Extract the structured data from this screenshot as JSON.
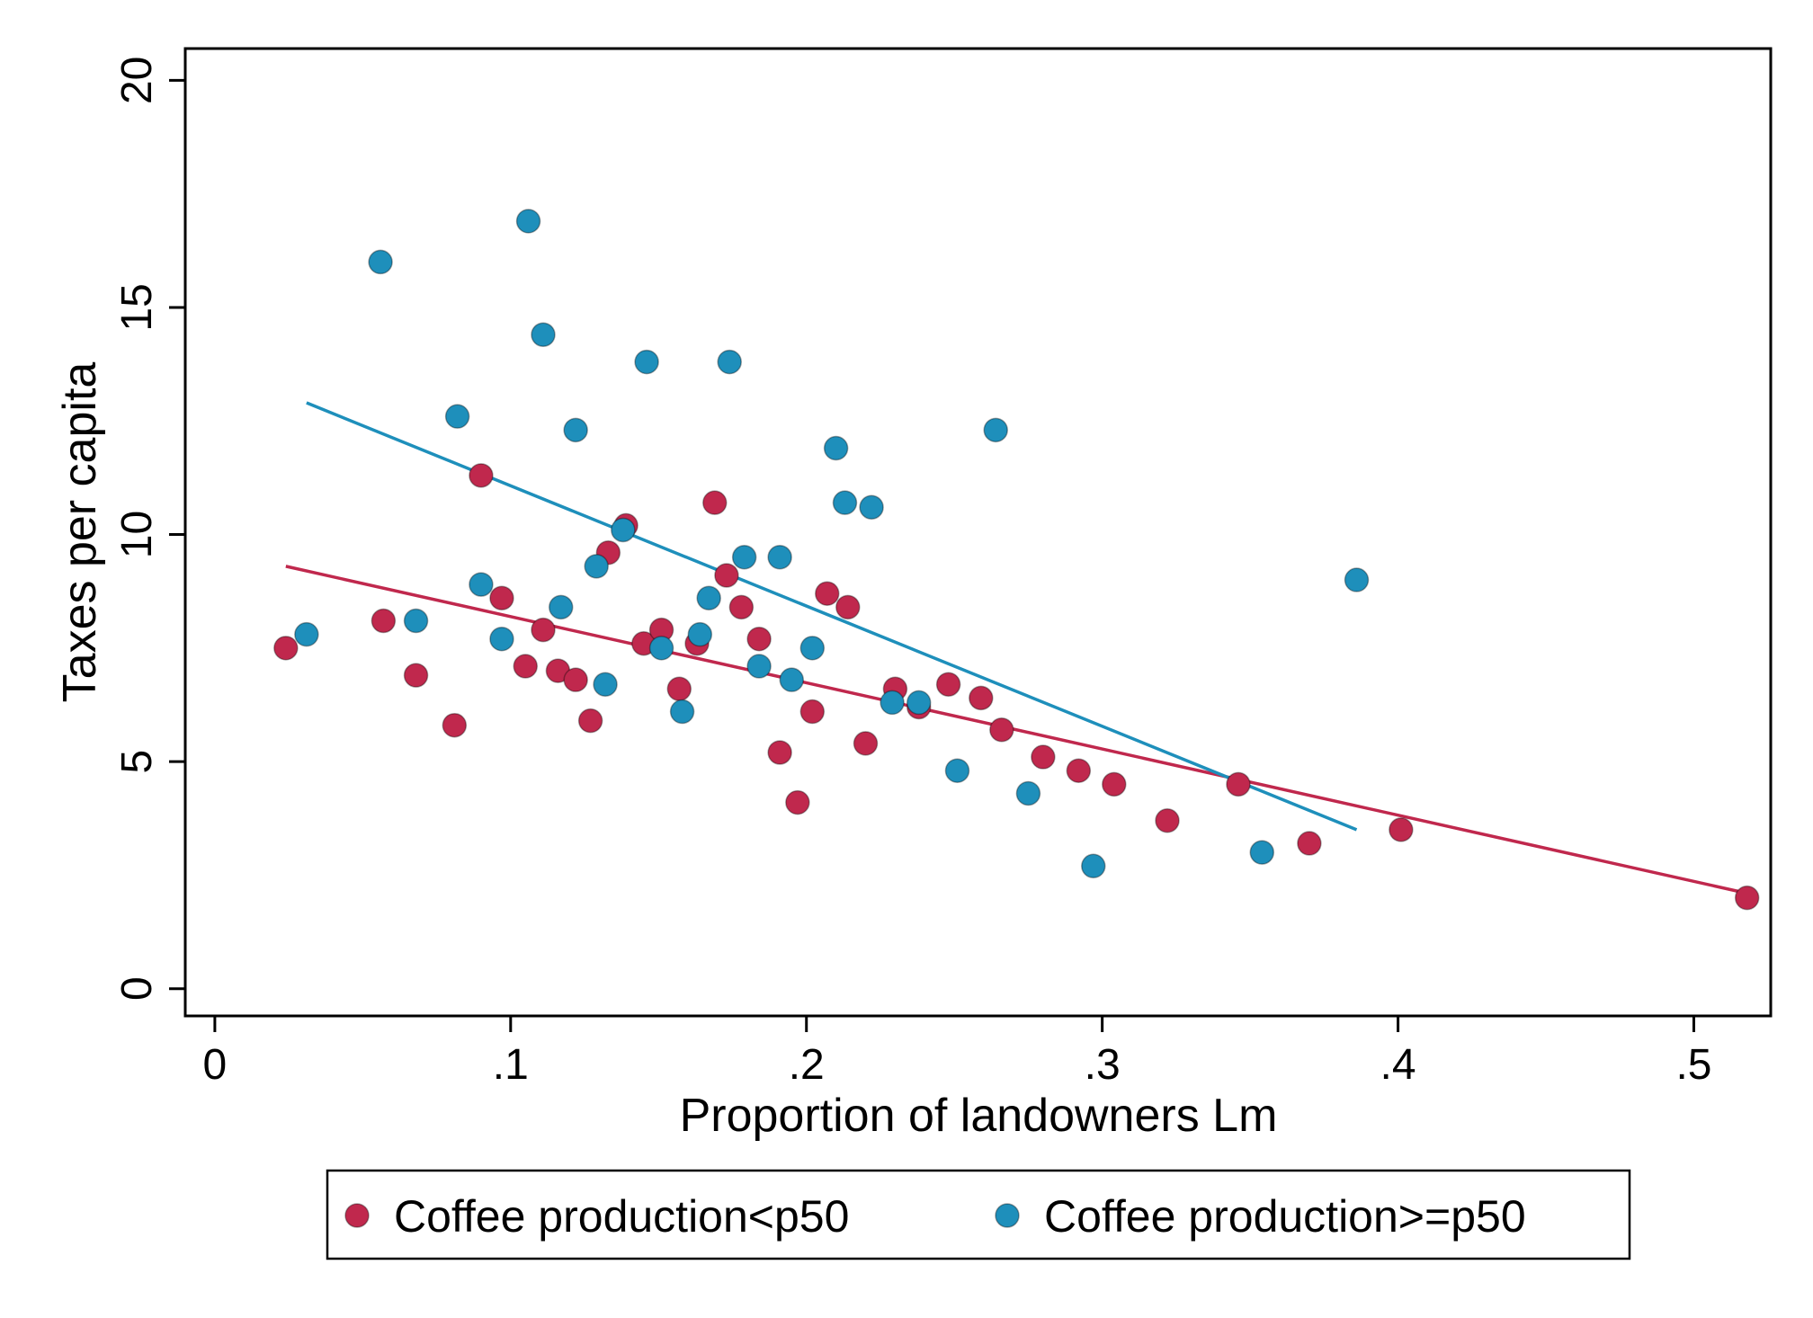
{
  "chart_data": {
    "type": "scatter",
    "title": "",
    "xlabel": "Proportion of landowners Lm",
    "ylabel": "Taxes per capita",
    "xlim": [
      -0.01,
      0.526
    ],
    "ylim": [
      -0.6,
      20.7
    ],
    "xticks": [
      {
        "value": 0,
        "label": "0"
      },
      {
        "value": 0.1,
        "label": ".1"
      },
      {
        "value": 0.2,
        "label": ".2"
      },
      {
        "value": 0.3,
        "label": ".3"
      },
      {
        "value": 0.4,
        "label": ".4"
      },
      {
        "value": 0.5,
        "label": ".5"
      }
    ],
    "yticks": [
      {
        "value": 0,
        "label": "0"
      },
      {
        "value": 5,
        "label": "5"
      },
      {
        "value": 10,
        "label": "10"
      },
      {
        "value": 15,
        "label": "15"
      },
      {
        "value": 20,
        "label": "20"
      }
    ],
    "grid": false,
    "legend_position": "bottom",
    "series": [
      {
        "name": "Coffee production<p50",
        "color": "#c0284d",
        "points": [
          [
            0.024,
            7.5
          ],
          [
            0.057,
            8.1
          ],
          [
            0.068,
            6.9
          ],
          [
            0.081,
            5.8
          ],
          [
            0.09,
            11.3
          ],
          [
            0.097,
            8.6
          ],
          [
            0.105,
            7.1
          ],
          [
            0.111,
            7.9
          ],
          [
            0.116,
            7.0
          ],
          [
            0.122,
            6.8
          ],
          [
            0.127,
            5.9
          ],
          [
            0.133,
            9.6
          ],
          [
            0.139,
            10.2
          ],
          [
            0.145,
            7.6
          ],
          [
            0.151,
            7.9
          ],
          [
            0.157,
            6.6
          ],
          [
            0.163,
            7.6
          ],
          [
            0.169,
            10.7
          ],
          [
            0.173,
            9.1
          ],
          [
            0.178,
            8.4
          ],
          [
            0.184,
            7.7
          ],
          [
            0.191,
            5.2
          ],
          [
            0.197,
            4.1
          ],
          [
            0.202,
            6.1
          ],
          [
            0.207,
            8.7
          ],
          [
            0.214,
            8.4
          ],
          [
            0.22,
            5.4
          ],
          [
            0.23,
            6.6
          ],
          [
            0.238,
            6.2
          ],
          [
            0.248,
            6.7
          ],
          [
            0.259,
            6.4
          ],
          [
            0.266,
            5.7
          ],
          [
            0.28,
            5.1
          ],
          [
            0.292,
            4.8
          ],
          [
            0.304,
            4.5
          ],
          [
            0.322,
            3.7
          ],
          [
            0.346,
            4.5
          ],
          [
            0.37,
            3.2
          ],
          [
            0.401,
            3.5
          ],
          [
            0.518,
            2.0
          ]
        ],
        "fit": {
          "x": [
            0.024,
            0.518
          ],
          "y": [
            9.3,
            2.1
          ]
        }
      },
      {
        "name": "Coffee production>=p50",
        "color": "#1e8fbb",
        "points": [
          [
            0.031,
            7.8
          ],
          [
            0.056,
            16.0
          ],
          [
            0.068,
            8.1
          ],
          [
            0.082,
            12.6
          ],
          [
            0.09,
            8.9
          ],
          [
            0.097,
            7.7
          ],
          [
            0.106,
            16.9
          ],
          [
            0.111,
            14.4
          ],
          [
            0.117,
            8.4
          ],
          [
            0.122,
            12.3
          ],
          [
            0.129,
            9.3
          ],
          [
            0.132,
            6.7
          ],
          [
            0.138,
            10.1
          ],
          [
            0.146,
            13.8
          ],
          [
            0.151,
            7.5
          ],
          [
            0.158,
            6.1
          ],
          [
            0.164,
            7.8
          ],
          [
            0.167,
            8.6
          ],
          [
            0.174,
            13.8
          ],
          [
            0.179,
            9.5
          ],
          [
            0.184,
            7.1
          ],
          [
            0.191,
            9.5
          ],
          [
            0.195,
            6.8
          ],
          [
            0.202,
            7.5
          ],
          [
            0.21,
            11.9
          ],
          [
            0.213,
            10.7
          ],
          [
            0.222,
            10.6
          ],
          [
            0.229,
            6.3
          ],
          [
            0.238,
            6.3
          ],
          [
            0.251,
            4.8
          ],
          [
            0.264,
            12.3
          ],
          [
            0.275,
            4.3
          ],
          [
            0.297,
            2.7
          ],
          [
            0.354,
            3.0
          ],
          [
            0.386,
            9.0
          ]
        ],
        "fit": {
          "x": [
            0.031,
            0.386
          ],
          "y": [
            12.9,
            3.5
          ]
        }
      }
    ]
  }
}
